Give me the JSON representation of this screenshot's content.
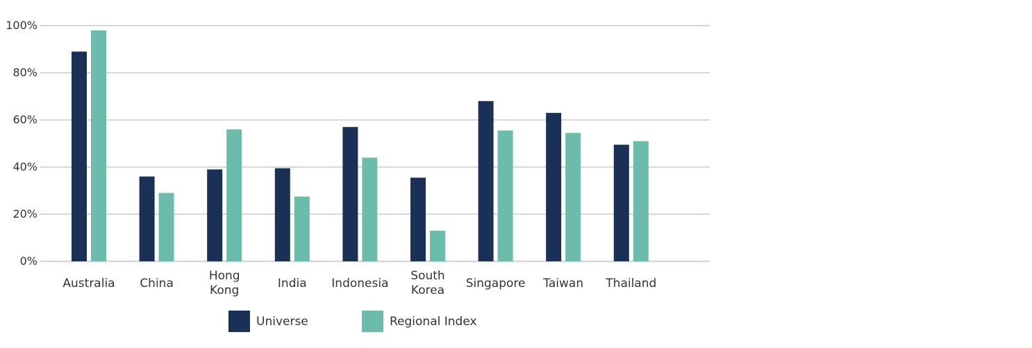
{
  "chart_data": {
    "type": "bar",
    "categories": [
      [
        "Australia"
      ],
      [
        "China"
      ],
      [
        "Hong",
        "Kong"
      ],
      [
        "India"
      ],
      [
        "Indonesia"
      ],
      [
        "South",
        "Korea"
      ],
      [
        "Singapore"
      ],
      [
        "Taiwan"
      ],
      [
        "Thailand"
      ]
    ],
    "series": [
      {
        "name": "Universe",
        "color": "#1b3056",
        "values": [
          89,
          36,
          39,
          39.5,
          57,
          35.5,
          68,
          63,
          49.5
        ]
      },
      {
        "name": "Regional Index",
        "color": "#6bbcab",
        "values": [
          98,
          29,
          56,
          27.5,
          44,
          13,
          55.5,
          54.5,
          51
        ]
      }
    ],
    "ylim": [
      0,
      100
    ],
    "yticks": [
      0,
      20,
      40,
      60,
      80,
      100
    ],
    "ytick_labels": [
      "0%",
      "20%",
      "40%",
      "60%",
      "80%",
      "100%"
    ],
    "grid": true,
    "legend_position": "bottom",
    "title": "",
    "xlabel": "",
    "ylabel": ""
  }
}
